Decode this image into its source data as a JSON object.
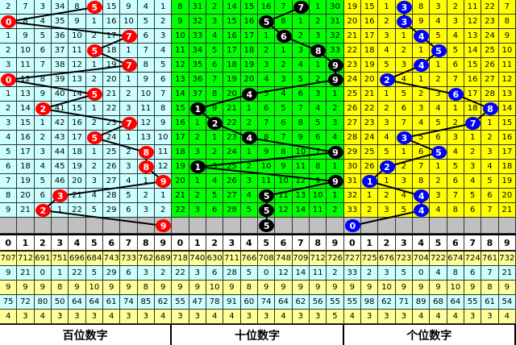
{
  "chart_data": {
    "type": "table",
    "header_digits": [
      "0",
      "1",
      "2",
      "3",
      "4",
      "5",
      "6",
      "7",
      "8",
      "9"
    ],
    "colors": {
      "bg": [
        "#ccffff",
        "#00ff00",
        "#ffff00"
      ],
      "ball": [
        "#ff0000",
        "#000000",
        "#0000ff"
      ],
      "pred_row": "#c0c0c0",
      "stat_a": "#ffff99",
      "stat_b": "#ccffff"
    },
    "sections": [
      {
        "title": "百位数字",
        "rows": [
          [
            2,
            7,
            3,
            34,
            8,
            5,
            15,
            9,
            4,
            1
          ],
          [
            0,
            8,
            4,
            35,
            9,
            1,
            16,
            10,
            5,
            2
          ],
          [
            1,
            9,
            5,
            36,
            10,
            2,
            17,
            7,
            6,
            3
          ],
          [
            2,
            10,
            6,
            37,
            11,
            5,
            18,
            1,
            7,
            4
          ],
          [
            3,
            11,
            7,
            38,
            12,
            1,
            19,
            7,
            8,
            5
          ],
          [
            0,
            12,
            8,
            39,
            13,
            2,
            20,
            1,
            9,
            6
          ],
          [
            1,
            13,
            9,
            40,
            14,
            5,
            21,
            2,
            10,
            7
          ],
          [
            2,
            14,
            2,
            41,
            15,
            1,
            22,
            3,
            11,
            8
          ],
          [
            3,
            15,
            1,
            42,
            16,
            2,
            23,
            7,
            12,
            9
          ],
          [
            4,
            16,
            2,
            43,
            17,
            5,
            24,
            1,
            13,
            10
          ],
          [
            5,
            17,
            3,
            44,
            18,
            1,
            25,
            2,
            8,
            11
          ],
          [
            6,
            18,
            4,
            45,
            19,
            2,
            26,
            3,
            8,
            12
          ],
          [
            7,
            19,
            5,
            46,
            20,
            3,
            27,
            4,
            1,
            9
          ],
          [
            8,
            20,
            6,
            3,
            21,
            4,
            28,
            5,
            2,
            1
          ],
          [
            9,
            21,
            2,
            1,
            22,
            5,
            29,
            6,
            3,
            2
          ]
        ],
        "hits": [
          5,
          0,
          7,
          5,
          7,
          0,
          5,
          2,
          7,
          5,
          8,
          8,
          9,
          3,
          2
        ],
        "prediction": 9,
        "stats": [
          [
            707,
            712,
            691,
            751,
            696,
            684,
            743,
            733,
            762,
            689
          ],
          [
            9,
            21,
            0,
            1,
            22,
            5,
            29,
            6,
            3,
            2
          ],
          [
            9,
            9,
            9,
            8,
            9,
            10,
            9,
            9,
            8,
            9
          ],
          [
            75,
            72,
            80,
            50,
            64,
            64,
            61,
            74,
            85,
            62
          ],
          [
            4,
            3,
            4,
            3,
            3,
            3,
            4,
            3,
            3,
            4
          ]
        ]
      },
      {
        "title": "十位数字",
        "rows": [
          [
            8,
            31,
            2,
            14,
            15,
            16,
            7,
            7,
            1,
            30
          ],
          [
            9,
            32,
            3,
            15,
            16,
            5,
            8,
            1,
            2,
            31
          ],
          [
            10,
            33,
            4,
            16,
            17,
            1,
            6,
            2,
            3,
            32
          ],
          [
            11,
            34,
            5,
            17,
            18,
            2,
            1,
            3,
            8,
            33
          ],
          [
            12,
            35,
            6,
            18,
            19,
            3,
            2,
            4,
            1,
            9
          ],
          [
            13,
            36,
            7,
            19,
            20,
            4,
            3,
            5,
            2,
            9
          ],
          [
            14,
            37,
            8,
            20,
            4,
            5,
            4,
            6,
            3,
            1
          ],
          [
            15,
            1,
            9,
            21,
            1,
            6,
            5,
            7,
            4,
            2
          ],
          [
            16,
            1,
            2,
            22,
            2,
            7,
            6,
            8,
            5,
            3
          ],
          [
            17,
            2,
            1,
            23,
            4,
            8,
            7,
            9,
            6,
            4
          ],
          [
            18,
            3,
            2,
            24,
            1,
            9,
            8,
            10,
            7,
            9
          ],
          [
            19,
            1,
            3,
            25,
            2,
            10,
            9,
            11,
            8,
            1
          ],
          [
            20,
            1,
            4,
            26,
            3,
            11,
            10,
            12,
            9,
            9
          ],
          [
            21,
            2,
            5,
            27,
            4,
            5,
            11,
            13,
            10,
            1
          ],
          [
            22,
            3,
            6,
            28,
            5,
            5,
            12,
            14,
            11,
            2
          ]
        ],
        "hits": [
          7,
          5,
          6,
          8,
          9,
          9,
          4,
          1,
          2,
          4,
          9,
          1,
          9,
          5,
          5
        ],
        "prediction": 5,
        "stats": [
          [
            718,
            740,
            630,
            711,
            766,
            708,
            748,
            709,
            712,
            726
          ],
          [
            22,
            3,
            6,
            28,
            5,
            0,
            12,
            14,
            11,
            2
          ],
          [
            9,
            9,
            10,
            9,
            8,
            9,
            9,
            9,
            9,
            9
          ],
          [
            55,
            47,
            78,
            91,
            60,
            74,
            64,
            62,
            56,
            55
          ],
          [
            3,
            3,
            4,
            4,
            3,
            3,
            4,
            3,
            3,
            5
          ]
        ]
      },
      {
        "title": "个位数字",
        "rows": [
          [
            19,
            15,
            1,
            3,
            8,
            3,
            2,
            11,
            22,
            7
          ],
          [
            20,
            16,
            2,
            3,
            9,
            4,
            3,
            12,
            23,
            8
          ],
          [
            21,
            17,
            3,
            1,
            4,
            5,
            4,
            13,
            24,
            9
          ],
          [
            22,
            18,
            4,
            2,
            1,
            5,
            5,
            14,
            25,
            10
          ],
          [
            23,
            19,
            5,
            3,
            4,
            1,
            6,
            15,
            26,
            11
          ],
          [
            24,
            20,
            2,
            4,
            1,
            2,
            7,
            16,
            27,
            12
          ],
          [
            25,
            21,
            1,
            5,
            2,
            3,
            6,
            17,
            28,
            13
          ],
          [
            26,
            22,
            2,
            6,
            3,
            4,
            1,
            18,
            8,
            14
          ],
          [
            27,
            23,
            3,
            7,
            4,
            5,
            2,
            7,
            1,
            15
          ],
          [
            28,
            24,
            4,
            3,
            5,
            6,
            3,
            1,
            2,
            16
          ],
          [
            29,
            25,
            5,
            1,
            6,
            5,
            4,
            2,
            3,
            17
          ],
          [
            30,
            26,
            2,
            2,
            7,
            1,
            5,
            3,
            4,
            18
          ],
          [
            31,
            1,
            1,
            3,
            8,
            2,
            6,
            4,
            5,
            19
          ],
          [
            32,
            1,
            2,
            4,
            4,
            3,
            7,
            5,
            6,
            20
          ],
          [
            33,
            2,
            3,
            5,
            4,
            4,
            8,
            6,
            7,
            21
          ]
        ],
        "hits": [
          3,
          3,
          4,
          5,
          4,
          2,
          6,
          8,
          7,
          3,
          5,
          2,
          1,
          4,
          4
        ],
        "prediction": 0,
        "stats": [
          [
            727,
            725,
            676,
            723,
            704,
            722,
            674,
            724,
            761,
            732
          ],
          [
            33,
            2,
            3,
            5,
            0,
            4,
            8,
            6,
            7,
            21
          ],
          [
            9,
            9,
            10,
            9,
            9,
            9,
            10,
            9,
            8,
            9
          ],
          [
            55,
            98,
            62,
            71,
            89,
            68,
            64,
            55,
            61,
            54
          ],
          [
            4,
            3,
            3,
            3,
            4,
            4,
            4,
            3,
            3,
            4
          ]
        ]
      }
    ]
  }
}
